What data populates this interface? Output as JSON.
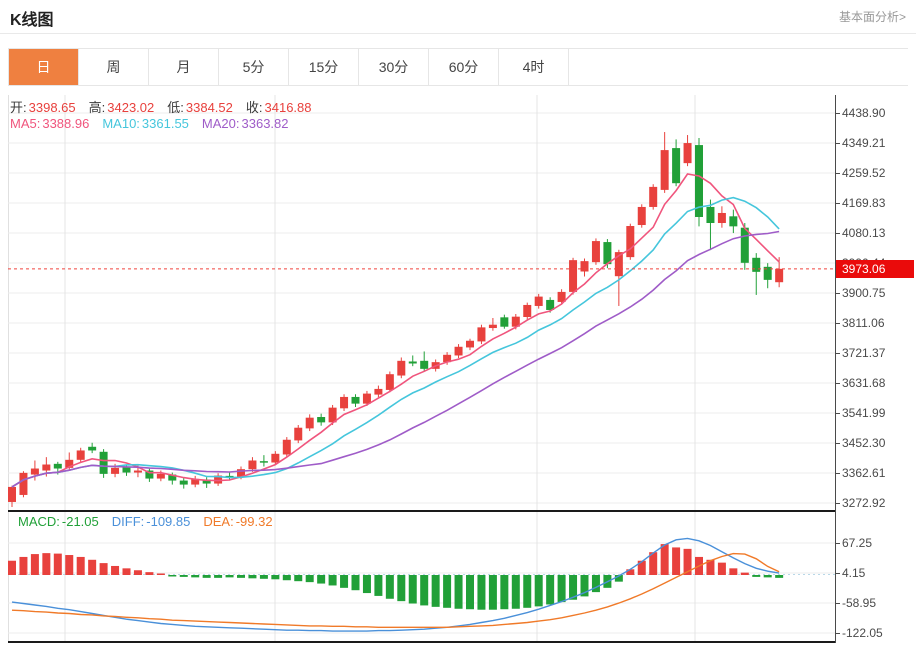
{
  "header": {
    "title": "K线图",
    "link": "基本面分析>"
  },
  "tabs": {
    "items": [
      {
        "label": "日",
        "name": "tab-day"
      },
      {
        "label": "周",
        "name": "tab-week"
      },
      {
        "label": "月",
        "name": "tab-month"
      },
      {
        "label": "5分",
        "name": "tab-5min"
      },
      {
        "label": "15分",
        "name": "tab-15min"
      },
      {
        "label": "30分",
        "name": "tab-30min"
      },
      {
        "label": "60分",
        "name": "tab-60min"
      },
      {
        "label": "4时",
        "name": "tab-4hour"
      }
    ],
    "active_index": 0
  },
  "info": {
    "ohlc": [
      {
        "label": "开:",
        "value": "3398.65"
      },
      {
        "label": "高:",
        "value": "3423.02"
      },
      {
        "label": "低:",
        "value": "3384.52"
      },
      {
        "label": "收:",
        "value": "3416.88"
      }
    ],
    "ma": [
      {
        "label": "MA5:",
        "value": "3388.96",
        "color": "#f0557d"
      },
      {
        "label": "MA10:",
        "value": "3361.55",
        "color": "#45c6dc"
      },
      {
        "label": "MA20:",
        "value": "3363.82",
        "color": "#9f5cc8"
      }
    ],
    "macd": [
      {
        "label": "MACD:",
        "value": "-21.05",
        "color": "#21a038"
      },
      {
        "label": "DIFF:",
        "value": "-109.85",
        "color": "#4a90d9"
      },
      {
        "label": "DEA:",
        "value": "-99.32",
        "color": "#f07a29"
      }
    ]
  },
  "chart_data": {
    "type": "candlestick+macd",
    "timeframe": "日",
    "price_axis": {
      "labels": [
        "4438.90",
        "4349.21",
        "4259.52",
        "4169.83",
        "4080.13",
        "3990.44",
        "3900.75",
        "3811.06",
        "3721.37",
        "3631.68",
        "3541.99",
        "3452.30",
        "3362.61",
        "3272.92"
      ],
      "max": 4438.9,
      "min": 3272.92
    },
    "current_price": {
      "value": "3973.06",
      "numeric": 3973.06
    },
    "candles_format": "[open, high, low, close] — red=close>open (up), green=down",
    "candles": [
      [
        3276,
        3325,
        3261,
        3321
      ],
      [
        3297,
        3368,
        3290,
        3363
      ],
      [
        3358,
        3400,
        3340,
        3376
      ],
      [
        3370,
        3410,
        3352,
        3388
      ],
      [
        3390,
        3396,
        3358,
        3376
      ],
      [
        3378,
        3424,
        3370,
        3402
      ],
      [
        3402,
        3438,
        3394,
        3430
      ],
      [
        3441,
        3453,
        3422,
        3430
      ],
      [
        3426,
        3434,
        3348,
        3360
      ],
      [
        3360,
        3390,
        3350,
        3378
      ],
      [
        3380,
        3388,
        3354,
        3364
      ],
      [
        3364,
        3386,
        3350,
        3370
      ],
      [
        3370,
        3376,
        3336,
        3346
      ],
      [
        3346,
        3370,
        3338,
        3360
      ],
      [
        3358,
        3364,
        3328,
        3340
      ],
      [
        3340,
        3350,
        3316,
        3328
      ],
      [
        3328,
        3354,
        3320,
        3345
      ],
      [
        3343,
        3350,
        3318,
        3331
      ],
      [
        3331,
        3362,
        3324,
        3355
      ],
      [
        3354,
        3364,
        3340,
        3350
      ],
      [
        3350,
        3382,
        3344,
        3374
      ],
      [
        3374,
        3410,
        3366,
        3400
      ],
      [
        3398,
        3416,
        3382,
        3394
      ],
      [
        3394,
        3428,
        3386,
        3420
      ],
      [
        3418,
        3470,
        3410,
        3462
      ],
      [
        3460,
        3506,
        3452,
        3498
      ],
      [
        3496,
        3538,
        3488,
        3528
      ],
      [
        3530,
        3540,
        3504,
        3514
      ],
      [
        3514,
        3566,
        3506,
        3558
      ],
      [
        3556,
        3598,
        3548,
        3590
      ],
      [
        3590,
        3598,
        3560,
        3570
      ],
      [
        3570,
        3608,
        3563,
        3600
      ],
      [
        3597,
        3624,
        3589,
        3614
      ],
      [
        3611,
        3666,
        3604,
        3658
      ],
      [
        3654,
        3708,
        3646,
        3698
      ],
      [
        3696,
        3714,
        3682,
        3690
      ],
      [
        3698,
        3726,
        3666,
        3674
      ],
      [
        3674,
        3702,
        3666,
        3694
      ],
      [
        3694,
        3724,
        3686,
        3716
      ],
      [
        3714,
        3748,
        3706,
        3740
      ],
      [
        3738,
        3764,
        3730,
        3758
      ],
      [
        3756,
        3806,
        3748,
        3798
      ],
      [
        3796,
        3826,
        3788,
        3806
      ],
      [
        3828,
        3836,
        3794,
        3800
      ],
      [
        3800,
        3838,
        3792,
        3830
      ],
      [
        3829,
        3872,
        3821,
        3865
      ],
      [
        3862,
        3898,
        3854,
        3890
      ],
      [
        3880,
        3888,
        3842,
        3850
      ],
      [
        3874,
        3912,
        3866,
        3904
      ],
      [
        3904,
        4006,
        3896,
        3999
      ],
      [
        3965,
        4004,
        3950,
        3996
      ],
      [
        3993,
        4064,
        3985,
        4056
      ],
      [
        4053,
        4062,
        3975,
        3987
      ],
      [
        3951,
        4030,
        3862,
        4023
      ],
      [
        4008,
        4108,
        4000,
        4101
      ],
      [
        4104,
        4166,
        4096,
        4158
      ],
      [
        4158,
        4226,
        4150,
        4218
      ],
      [
        4209,
        4382,
        4200,
        4328
      ],
      [
        4334,
        4360,
        4220,
        4229
      ],
      [
        4289,
        4373,
        4280,
        4349
      ],
      [
        4343,
        4364,
        4100,
        4128
      ],
      [
        4158,
        4180,
        4029,
        4110
      ],
      [
        4110,
        4160,
        4096,
        4140
      ],
      [
        4130,
        4150,
        4080,
        4100
      ],
      [
        4096,
        4110,
        3970,
        3991
      ],
      [
        4006,
        4020,
        3895,
        3964
      ],
      [
        3979,
        3990,
        3915,
        3940
      ],
      [
        3933,
        4008,
        3918,
        3973
      ]
    ],
    "ma_periods": [
      5,
      10,
      20
    ],
    "macd": {
      "axis_labels": [
        "67.25",
        "4.15",
        "-58.95",
        "-122.05"
      ],
      "hist": [
        30,
        38,
        44,
        46,
        45,
        42,
        38,
        32,
        25,
        19,
        14,
        10,
        6,
        2,
        -2,
        -4,
        -5,
        -6,
        -6,
        -5,
        -6,
        -7,
        -8,
        -9,
        -11,
        -13,
        -15,
        -18,
        -22,
        -27,
        -32,
        -38,
        -44,
        -50,
        -55,
        -60,
        -64,
        -67,
        -69,
        -71,
        -72,
        -73,
        -73,
        -72,
        -71,
        -69,
        -66,
        -62,
        -57,
        -52,
        -45,
        -36,
        -27,
        -14,
        12,
        30,
        48,
        65,
        58,
        55,
        38,
        32,
        26,
        14,
        5,
        -4,
        -5,
        -6
      ],
      "diff": [
        -57,
        -60,
        -63,
        -66,
        -70,
        -73,
        -77,
        -81,
        -85,
        -89,
        -93,
        -96,
        -99,
        -102,
        -104,
        -106,
        -108,
        -109,
        -110,
        -111,
        -112,
        -113,
        -114,
        -115,
        -116,
        -116,
        -117,
        -117,
        -118,
        -118,
        -118,
        -118,
        -117,
        -117,
        -116,
        -115,
        -114,
        -112,
        -110,
        -107,
        -104,
        -100,
        -96,
        -91,
        -85,
        -79,
        -72,
        -64,
        -56,
        -47,
        -37,
        -26,
        -14,
        -2,
        12,
        28,
        46,
        63,
        74,
        77,
        72,
        62,
        49,
        36,
        24,
        14,
        8,
        4
      ],
      "dea": [
        -74,
        -75,
        -77,
        -78,
        -80,
        -81,
        -83,
        -84,
        -86,
        -87,
        -89,
        -90,
        -92,
        -93,
        -95,
        -96,
        -97,
        -98,
        -99,
        -100,
        -101,
        -102,
        -103,
        -104,
        -105,
        -106,
        -107,
        -107,
        -108,
        -108,
        -109,
        -109,
        -110,
        -110,
        -110,
        -110,
        -110,
        -110,
        -110,
        -109,
        -108,
        -107,
        -106,
        -104,
        -102,
        -100,
        -97,
        -94,
        -90,
        -85,
        -80,
        -74,
        -67,
        -59,
        -50,
        -40,
        -29,
        -17,
        -5,
        7,
        19,
        30,
        39,
        45,
        44,
        34,
        18,
        7
      ]
    },
    "colors": {
      "up": "#e8413d",
      "down": "#21a038",
      "ma5": "#f0557d",
      "ma10": "#45c6dc",
      "ma20": "#9f5cc8",
      "diff": "#4a90d9",
      "dea": "#f07a29",
      "tab_accent": "#ef8040",
      "badge": "#ea0b0b",
      "price_line": "#f0443f",
      "grid": "#ececec",
      "vgrid": "#e4e4e4"
    },
    "legend_position": "none",
    "grid": true
  }
}
